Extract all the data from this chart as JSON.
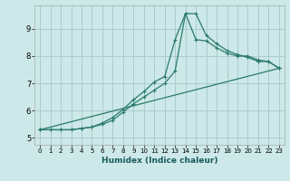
{
  "xlabel": "Humidex (Indice chaleur)",
  "bg_color": "#cce8e8",
  "grid_color": "#aacccc",
  "line_color": "#2a7a6a",
  "xlim": [
    -0.5,
    23.5
  ],
  "ylim": [
    4.75,
    9.85
  ],
  "xticks": [
    0,
    1,
    2,
    3,
    4,
    5,
    6,
    7,
    8,
    9,
    10,
    11,
    12,
    13,
    14,
    15,
    16,
    17,
    18,
    19,
    20,
    21,
    22,
    23
  ],
  "yticks": [
    5,
    6,
    7,
    8,
    9
  ],
  "line1_x": [
    0,
    1,
    2,
    3,
    4,
    5,
    6,
    7,
    8,
    9,
    10,
    11,
    12,
    13,
    14,
    15,
    16,
    17,
    18,
    19,
    20,
    21,
    22,
    23
  ],
  "line1_y": [
    5.3,
    5.3,
    5.3,
    5.3,
    5.35,
    5.4,
    5.55,
    5.75,
    6.05,
    6.4,
    6.7,
    7.05,
    7.25,
    8.6,
    9.55,
    8.6,
    8.55,
    8.3,
    8.1,
    8.0,
    8.0,
    7.85,
    7.8,
    7.55
  ],
  "line2_x": [
    0,
    1,
    2,
    3,
    4,
    5,
    6,
    7,
    8,
    9,
    10,
    11,
    12,
    13,
    14,
    15,
    16,
    17,
    18,
    19,
    20,
    21,
    22,
    23
  ],
  "line2_y": [
    5.3,
    5.3,
    5.3,
    5.3,
    5.35,
    5.4,
    5.5,
    5.65,
    5.95,
    6.25,
    6.5,
    6.75,
    7.0,
    7.45,
    9.55,
    9.55,
    8.75,
    8.45,
    8.2,
    8.05,
    7.95,
    7.8,
    7.8,
    7.55
  ],
  "line3_x": [
    0,
    23
  ],
  "line3_y": [
    5.3,
    7.55
  ]
}
